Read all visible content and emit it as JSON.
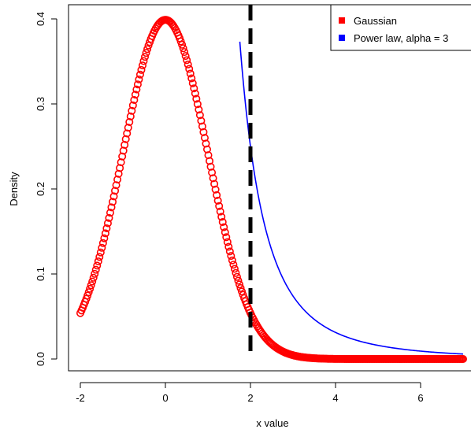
{
  "chart_data": {
    "type": "line",
    "title": "",
    "xlabel": "x value",
    "ylabel": "Density",
    "xlim": [
      -2,
      7
    ],
    "ylim": [
      0,
      0.4
    ],
    "x_ticks": [
      -2,
      0,
      2,
      4,
      6
    ],
    "y_ticks": [
      0.0,
      0.1,
      0.2,
      0.3,
      0.4
    ],
    "x_tick_labels": [
      "-2",
      "0",
      "2",
      "4",
      "6"
    ],
    "y_tick_labels": [
      "0.0",
      "0.1",
      "0.2",
      "0.3",
      "0.4"
    ],
    "legend_position": "top-right",
    "series": [
      {
        "name": "Gaussian",
        "style": "thick points",
        "color": "#ff0000",
        "function": "standard normal density",
        "x_range": [
          -2,
          7
        ],
        "sample_points": [
          [
            -2,
            0.054
          ],
          [
            -1,
            0.242
          ],
          [
            0,
            0.399
          ],
          [
            1,
            0.242
          ],
          [
            2,
            0.054
          ],
          [
            3,
            0.004
          ],
          [
            4,
            0.0001
          ],
          [
            7,
            0.0
          ]
        ]
      },
      {
        "name": "Power law, alpha = 3",
        "style": "line",
        "color": "#0000ff",
        "function": "power law density, alpha = 3, xmin = 1",
        "x_range": [
          1.75,
          7
        ],
        "sample_points": [
          [
            2,
            0.25
          ],
          [
            3,
            0.074
          ],
          [
            4,
            0.031
          ],
          [
            5,
            0.016
          ],
          [
            6,
            0.009
          ],
          [
            7,
            0.006
          ]
        ]
      }
    ],
    "reference_line": {
      "x": 2,
      "style": "dashed",
      "color": "#000000"
    }
  }
}
